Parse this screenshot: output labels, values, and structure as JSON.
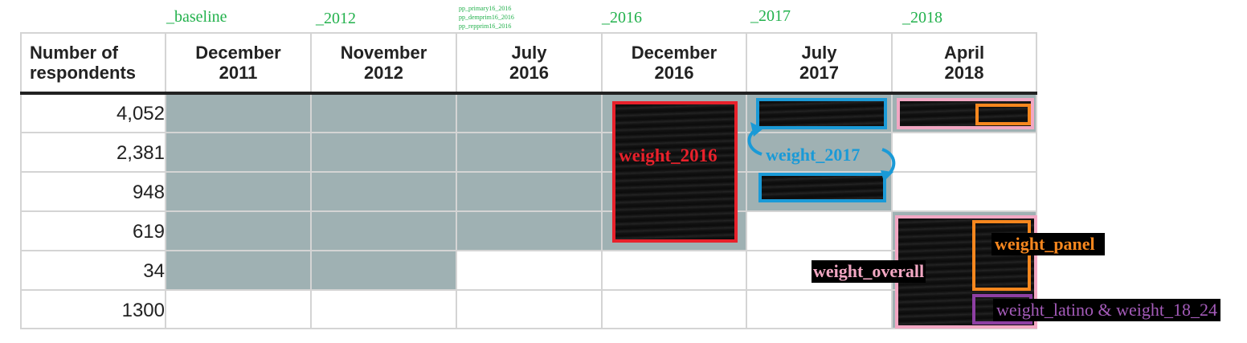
{
  "suffixes": {
    "baseline": "_baseline",
    "y2012": "_2012",
    "y2016": "_2016",
    "y2017": "_2017",
    "y2018": "_2018",
    "july2016_lines": [
      "pp_primary16_2016",
      "pp_demprim16_2016",
      "pp_repprim16_2016"
    ]
  },
  "table": {
    "header_first": [
      "Number of",
      "respondents"
    ],
    "columns": [
      [
        "December",
        "2011"
      ],
      [
        "November",
        "2012"
      ],
      [
        "July",
        "2016"
      ],
      [
        "December",
        "2016"
      ],
      [
        "July",
        "2017"
      ],
      [
        "April",
        "2018"
      ]
    ],
    "rows": [
      "4,052",
      "2,381",
      "948",
      "619",
      "34",
      "1300"
    ]
  },
  "weights": {
    "w2016": "weight_2016",
    "w2017": "weight_2017",
    "overall": "weight_overall",
    "panel": "weight_panel",
    "latino": "weight_latino & weight_18_24"
  },
  "colors": {
    "grid_fill": "#9fb1b3",
    "suffix_green": "#22b14c",
    "red": "#e8212b",
    "blue": "#1a9ad7",
    "pink": "#f2a7c3",
    "orange": "#f7871e",
    "purple": "#8e3fa3"
  }
}
